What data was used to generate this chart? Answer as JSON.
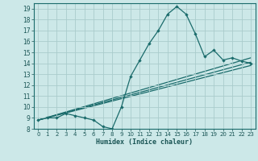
{
  "xlabel": "Humidex (Indice chaleur)",
  "bg_color": "#cce8e8",
  "line_color": "#1a6b6b",
  "grid_color": "#aacccc",
  "xlim": [
    -0.5,
    23.5
  ],
  "ylim": [
    8,
    19.5
  ],
  "xticks": [
    0,
    1,
    2,
    3,
    4,
    5,
    6,
    7,
    8,
    9,
    10,
    11,
    12,
    13,
    14,
    15,
    16,
    17,
    18,
    19,
    20,
    21,
    22,
    23
  ],
  "yticks": [
    8,
    9,
    10,
    11,
    12,
    13,
    14,
    15,
    16,
    17,
    18,
    19
  ],
  "main_x": [
    0,
    1,
    2,
    3,
    4,
    5,
    6,
    7,
    8,
    9,
    10,
    11,
    12,
    13,
    14,
    15,
    16,
    17,
    18,
    19,
    20,
    21,
    22,
    23
  ],
  "main_y": [
    8.8,
    9.0,
    9.0,
    9.4,
    9.2,
    9.0,
    8.8,
    8.2,
    8.0,
    10.0,
    12.8,
    14.3,
    15.8,
    17.0,
    18.5,
    19.2,
    18.5,
    16.7,
    14.6,
    15.2,
    14.3,
    14.5,
    14.2,
    14.0
  ],
  "lines": [
    {
      "x": [
        0,
        23
      ],
      "y": [
        8.8,
        13.8
      ]
    },
    {
      "x": [
        0,
        23
      ],
      "y": [
        8.8,
        14.1
      ]
    },
    {
      "x": [
        0,
        23
      ],
      "y": [
        8.8,
        14.5
      ]
    }
  ]
}
